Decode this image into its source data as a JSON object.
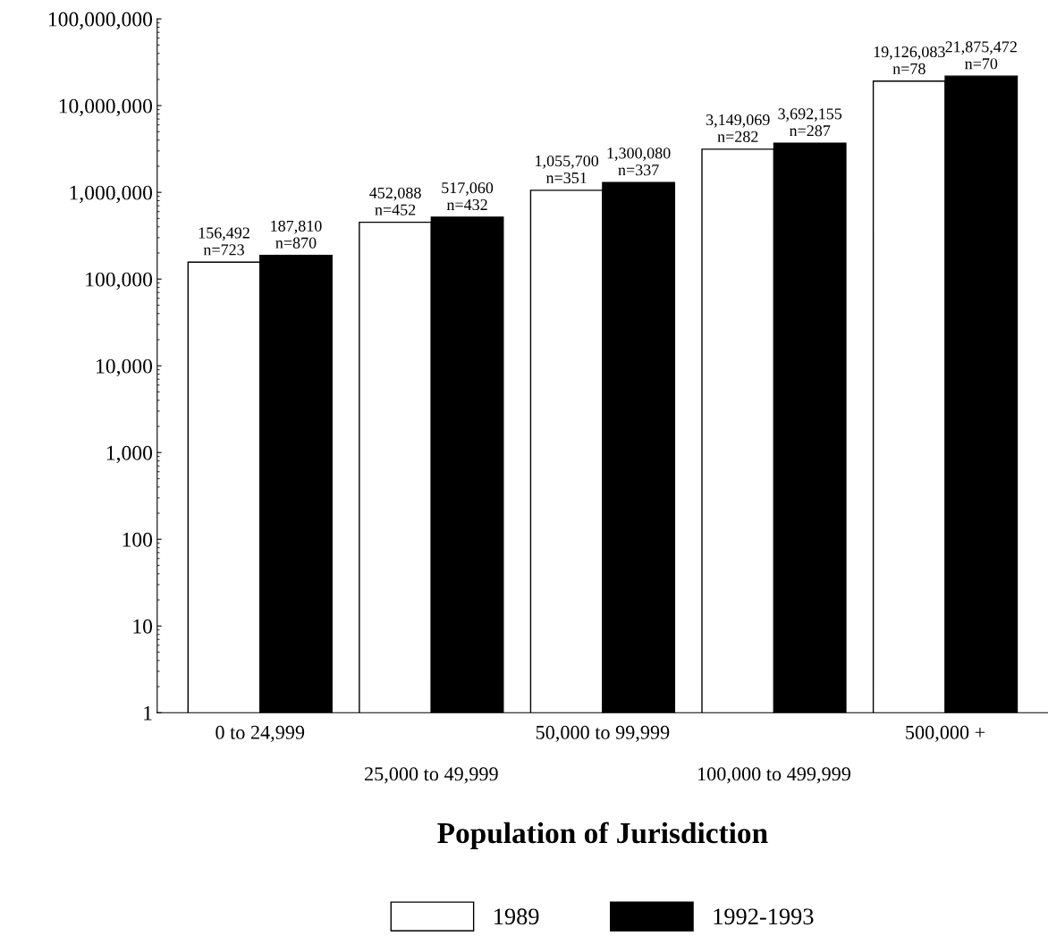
{
  "chart_data": {
    "type": "bar",
    "xlabel": "Population of Jurisdiction",
    "categories": [
      "0 to 24,999",
      "25,000 to 49,999",
      "50,000 to 99,999",
      "100,000 to 499,999",
      "500,000 +"
    ],
    "series": [
      {
        "name": "1989",
        "color": "#ffffff",
        "values": [
          156492,
          452088,
          1055700,
          3149069,
          19126083
        ],
        "value_labels": [
          "156,492\nn=723",
          "452,088\nn=452",
          "1,055,700\nn=351",
          "3,149,069\nn=282",
          "19,126,083\nn=78"
        ]
      },
      {
        "name": "1992-1993",
        "color": "#000000",
        "values": [
          187810,
          517060,
          1300080,
          3692155,
          21875472
        ],
        "value_labels": [
          "187,810\nn=870",
          "517,060\nn=432",
          "1,300,080\nn=337",
          "3,692,155\nn=287",
          "21,875,472\nn=70"
        ]
      }
    ],
    "log": "y",
    "ylim": [
      1,
      100000000
    ],
    "yticks": [
      {
        "value": 1,
        "label": "1"
      },
      {
        "value": 10,
        "label": "10"
      },
      {
        "value": 100,
        "label": "100"
      },
      {
        "value": 1000,
        "label": "1,000"
      },
      {
        "value": 10000,
        "label": "10,000"
      },
      {
        "value": 100000,
        "label": "100,000"
      },
      {
        "value": 1000000,
        "label": "1,000,000"
      },
      {
        "value": 10000000,
        "label": "10,000,000"
      },
      {
        "value": 100000000,
        "label": "100,000,000"
      }
    ],
    "legend": "bottom",
    "grid": false
  }
}
